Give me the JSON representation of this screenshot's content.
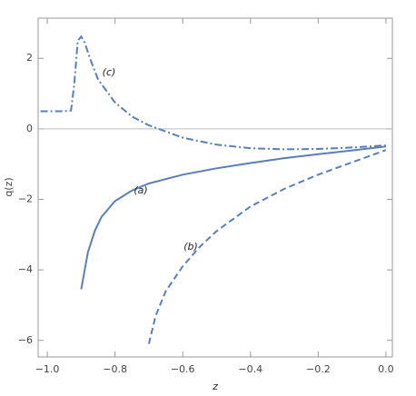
{
  "chart_data": {
    "type": "line",
    "x_label": "z",
    "y_label": "q(z)",
    "xlim": [
      -1.027,
      0.019
    ],
    "ylim": [
      -6.47,
      3.14
    ],
    "xticks": [
      {
        "value": -1,
        "label": "−1.0"
      },
      {
        "value": -0.8,
        "label": "−0.8"
      },
      {
        "value": -0.6,
        "label": "−0.6"
      },
      {
        "value": -0.4,
        "label": "−0.4"
      },
      {
        "value": -0.2,
        "label": "−0.2"
      },
      {
        "value": 0,
        "label": "0.0"
      }
    ],
    "yticks": [
      {
        "value": -6,
        "label": "−6"
      },
      {
        "value": -4,
        "label": "−4"
      },
      {
        "value": -2,
        "label": "−2"
      },
      0,
      2
    ],
    "zero_line": true,
    "series": [
      {
        "name": "(a)",
        "color": "#5a7fb8",
        "style": "solid",
        "x": [
          -0.9,
          -0.88,
          -0.86,
          -0.84,
          -0.8,
          -0.75,
          -0.7,
          -0.6,
          -0.5,
          -0.4,
          -0.3,
          -0.2,
          -0.1,
          0
        ],
        "values": [
          -4.55,
          -3.5,
          -2.9,
          -2.5,
          -2.05,
          -1.75,
          -1.55,
          -1.3,
          -1.12,
          -0.97,
          -0.83,
          -0.72,
          -0.61,
          -0.5
        ]
      },
      {
        "name": "(b)",
        "color": "#5a7fb8",
        "style": "dashed",
        "x": [
          -0.7,
          -0.68,
          -0.65,
          -0.6,
          -0.55,
          -0.5,
          -0.4,
          -0.3,
          -0.2,
          -0.1,
          0
        ],
        "values": [
          -6.1,
          -5.3,
          -4.6,
          -3.9,
          -3.35,
          -2.9,
          -2.2,
          -1.7,
          -1.3,
          -0.95,
          -0.6
        ]
      },
      {
        "name": "(c)",
        "color": "#5a7fb8",
        "style": "dashdot",
        "x": [
          -1.02,
          -0.95,
          -0.93,
          -0.92,
          -0.91,
          -0.9,
          -0.89,
          -0.87,
          -0.85,
          -0.8,
          -0.75,
          -0.7,
          -0.6,
          -0.5,
          -0.4,
          -0.3,
          -0.2,
          -0.1,
          0
        ],
        "values": [
          0.5,
          0.5,
          0.52,
          1.3,
          2.5,
          2.62,
          2.45,
          1.9,
          1.4,
          0.75,
          0.35,
          0.1,
          -0.25,
          -0.45,
          -0.55,
          -0.58,
          -0.57,
          -0.53,
          -0.47
        ]
      }
    ]
  }
}
